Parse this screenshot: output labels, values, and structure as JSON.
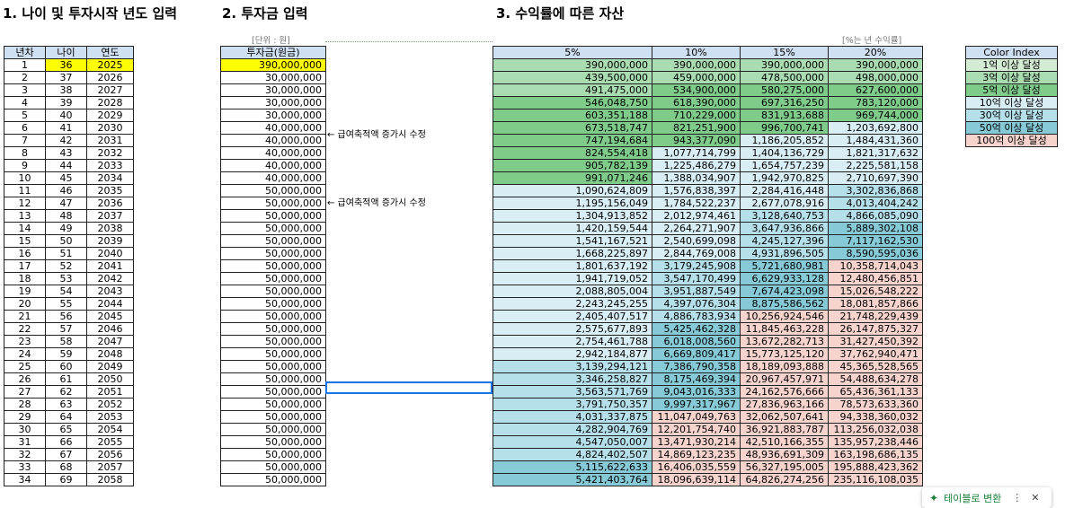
{
  "sections": {
    "s1": "1. 나이 및 투자시작 년도 입력",
    "s2": "2. 투자금 입력",
    "s3": "3. 수익률에 따른 자산"
  },
  "notes": {
    "unit": "[단위 : 원]",
    "rate": "[%는 년 수익률]"
  },
  "annotations": {
    "a1": "← 급여축적액 증가시 수정",
    "a2": "← 급여축적액 증가시 수정"
  },
  "left_headers": [
    "년차",
    "나이",
    "연도"
  ],
  "left_rows": [
    [
      "1",
      "36",
      "2025"
    ],
    [
      "2",
      "37",
      "2026"
    ],
    [
      "3",
      "38",
      "2027"
    ],
    [
      "4",
      "39",
      "2028"
    ],
    [
      "5",
      "40",
      "2029"
    ],
    [
      "6",
      "41",
      "2030"
    ],
    [
      "7",
      "42",
      "2031"
    ],
    [
      "8",
      "43",
      "2032"
    ],
    [
      "9",
      "44",
      "2033"
    ],
    [
      "10",
      "45",
      "2034"
    ],
    [
      "11",
      "46",
      "2035"
    ],
    [
      "12",
      "47",
      "2036"
    ],
    [
      "13",
      "48",
      "2037"
    ],
    [
      "14",
      "49",
      "2038"
    ],
    [
      "15",
      "50",
      "2039"
    ],
    [
      "16",
      "51",
      "2040"
    ],
    [
      "17",
      "52",
      "2041"
    ],
    [
      "18",
      "53",
      "2042"
    ],
    [
      "19",
      "54",
      "2043"
    ],
    [
      "20",
      "55",
      "2044"
    ],
    [
      "21",
      "56",
      "2045"
    ],
    [
      "22",
      "57",
      "2046"
    ],
    [
      "23",
      "58",
      "2047"
    ],
    [
      "24",
      "59",
      "2048"
    ],
    [
      "25",
      "60",
      "2049"
    ],
    [
      "26",
      "61",
      "2050"
    ],
    [
      "27",
      "62",
      "2051"
    ],
    [
      "28",
      "63",
      "2052"
    ],
    [
      "29",
      "64",
      "2053"
    ],
    [
      "30",
      "65",
      "2054"
    ],
    [
      "31",
      "66",
      "2055"
    ],
    [
      "32",
      "67",
      "2056"
    ],
    [
      "33",
      "68",
      "2057"
    ],
    [
      "34",
      "69",
      "2058"
    ]
  ],
  "invest_header": "투자금(원금)",
  "invest": [
    "390,000,000",
    "30,000,000",
    "30,000,000",
    "30,000,000",
    "30,000,000",
    "40,000,000",
    "40,000,000",
    "40,000,000",
    "40,000,000",
    "40,000,000",
    "50,000,000",
    "50,000,000",
    "50,000,000",
    "50,000,000",
    "50,000,000",
    "50,000,000",
    "50,000,000",
    "50,000,000",
    "50,000,000",
    "50,000,000",
    "50,000,000",
    "50,000,000",
    "50,000,000",
    "50,000,000",
    "50,000,000",
    "50,000,000",
    "50,000,000",
    "50,000,000",
    "50,000,000",
    "50,000,000",
    "50,000,000",
    "50,000,000",
    "50,000,000",
    "50,000,000"
  ],
  "rate_headers": [
    "5%",
    "10%",
    "15%",
    "20%"
  ],
  "asset_rows": [
    [
      "390,000,000",
      "390,000,000",
      "390,000,000",
      "390,000,000"
    ],
    [
      "439,500,000",
      "459,000,000",
      "478,500,000",
      "498,000,000"
    ],
    [
      "491,475,000",
      "534,900,000",
      "580,275,000",
      "627,600,000"
    ],
    [
      "546,048,750",
      "618,390,000",
      "697,316,250",
      "783,120,000"
    ],
    [
      "603,351,188",
      "710,229,000",
      "831,913,688",
      "969,744,000"
    ],
    [
      "673,518,747",
      "821,251,900",
      "996,700,741",
      "1,203,692,800"
    ],
    [
      "747,194,684",
      "943,377,090",
      "1,186,205,852",
      "1,484,431,360"
    ],
    [
      "824,554,418",
      "1,077,714,799",
      "1,404,136,729",
      "1,821,317,632"
    ],
    [
      "905,782,139",
      "1,225,486,279",
      "1,654,757,239",
      "2,225,581,158"
    ],
    [
      "991,071,246",
      "1,388,034,907",
      "1,942,970,825",
      "2,710,697,390"
    ],
    [
      "1,090,624,809",
      "1,576,838,397",
      "2,284,416,448",
      "3,302,836,868"
    ],
    [
      "1,195,156,049",
      "1,784,522,237",
      "2,677,078,916",
      "4,013,404,242"
    ],
    [
      "1,304,913,852",
      "2,012,974,461",
      "3,128,640,753",
      "4,866,085,090"
    ],
    [
      "1,420,159,544",
      "2,264,271,907",
      "3,647,936,866",
      "5,889,302,108"
    ],
    [
      "1,541,167,521",
      "2,540,699,098",
      "4,245,127,396",
      "7,117,162,530"
    ],
    [
      "1,668,225,897",
      "2,844,769,008",
      "4,931,896,505",
      "8,590,595,036"
    ],
    [
      "1,801,637,192",
      "3,179,245,908",
      "5,721,680,981",
      "10,358,714,043"
    ],
    [
      "1,941,719,052",
      "3,547,170,499",
      "6,629,933,128",
      "12,480,456,851"
    ],
    [
      "2,088,805,004",
      "3,951,887,549",
      "7,674,423,098",
      "15,026,548,222"
    ],
    [
      "2,243,245,255",
      "4,397,076,304",
      "8,875,586,562",
      "18,081,857,866"
    ],
    [
      "2,405,407,517",
      "4,886,783,934",
      "10,256,924,546",
      "21,748,229,439"
    ],
    [
      "2,575,677,893",
      "5,425,462,328",
      "11,845,463,228",
      "26,147,875,327"
    ],
    [
      "2,754,461,788",
      "6,018,008,560",
      "13,672,282,713",
      "31,427,450,392"
    ],
    [
      "2,942,184,877",
      "6,669,809,417",
      "15,773,125,120",
      "37,762,940,471"
    ],
    [
      "3,139,294,121",
      "7,386,790,358",
      "18,189,093,888",
      "45,365,528,565"
    ],
    [
      "3,346,258,827",
      "8,175,469,394",
      "20,967,457,971",
      "54,488,634,278"
    ],
    [
      "3,563,571,769",
      "9,043,016,333",
      "24,162,576,666",
      "65,436,361,133"
    ],
    [
      "3,791,750,357",
      "9,997,317,967",
      "27,836,963,166",
      "78,573,633,360"
    ],
    [
      "4,031,337,875",
      "11,047,049,763",
      "32,062,507,641",
      "94,338,360,032"
    ],
    [
      "4,282,904,769",
      "12,201,754,740",
      "36,921,883,787",
      "113,256,032,038"
    ],
    [
      "4,547,050,007",
      "13,471,930,214",
      "42,510,166,355",
      "135,957,238,446"
    ],
    [
      "4,824,402,507",
      "14,869,123,235",
      "48,936,691,309",
      "163,198,686,135"
    ],
    [
      "5,115,622,633",
      "16,406,035,559",
      "56,327,195,005",
      "195,888,423,362"
    ],
    [
      "5,421,403,764",
      "18,096,639,114",
      "64,826,274,256",
      "235,116,108,035"
    ]
  ],
  "color_index": {
    "header": "Color Index",
    "items": [
      "1억 이상 달성",
      "3억 이상 달성",
      "5억 이상 달성",
      "10억 이상 달성",
      "30억 이상 달성",
      "50억 이상 달성",
      "100억 이상 달성"
    ]
  },
  "colors": {
    "c1": "#d3ecd3",
    "c3": "#a9dcb0",
    "c5": "#7fcb8a",
    "c10": "#d9eef4",
    "c30": "#b5e0ea",
    "c50": "#86c9d7",
    "c100": "#f6d3cd",
    "yellow": "#ffff00",
    "header": "#cfe0f3"
  },
  "toast": {
    "label": "테이블로 변환",
    "more": "⋮",
    "close": "✕"
  }
}
